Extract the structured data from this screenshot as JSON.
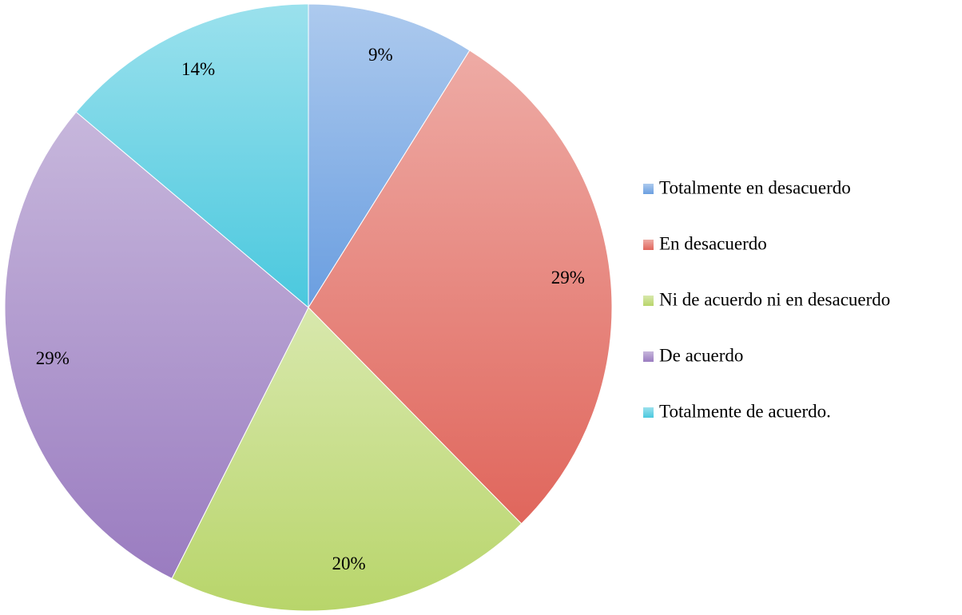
{
  "chart_data": {
    "type": "pie",
    "categories": [
      "Totalmente en desacuerdo",
      "En desacuerdo",
      "Ni de acuerdo ni en desacuerdo",
      "De acuerdo",
      "Totalmente de acuerdo."
    ],
    "values": [
      9,
      29,
      20,
      29,
      14
    ],
    "value_labels": [
      "9%",
      "29%",
      "20%",
      "29%",
      "14%"
    ],
    "colors": [
      "#6a9ee0",
      "#e0665c",
      "#b8d56a",
      "#9a7cc0",
      "#4ac8de"
    ],
    "legend": "right"
  }
}
